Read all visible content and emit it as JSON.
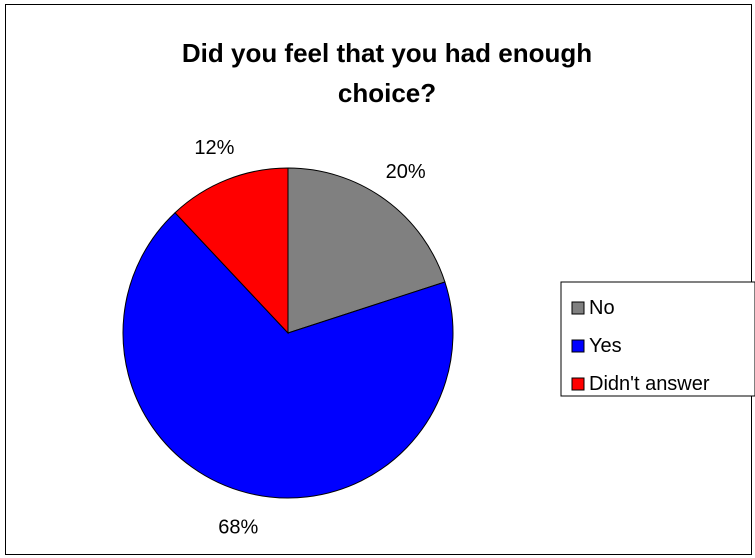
{
  "chart_data": {
    "type": "pie",
    "title_lines": [
      "Did you feel that you had enough",
      "choice?"
    ],
    "categories": [
      "No",
      "Yes",
      "Didn't answer"
    ],
    "values": [
      20,
      68,
      12
    ],
    "data_labels": [
      "20%",
      "68%",
      "12%"
    ],
    "colors": [
      "#808080",
      "#0000FF",
      "#FF0000"
    ],
    "legend_position": "right",
    "start_angle_deg": 0,
    "direction": "clockwise"
  }
}
